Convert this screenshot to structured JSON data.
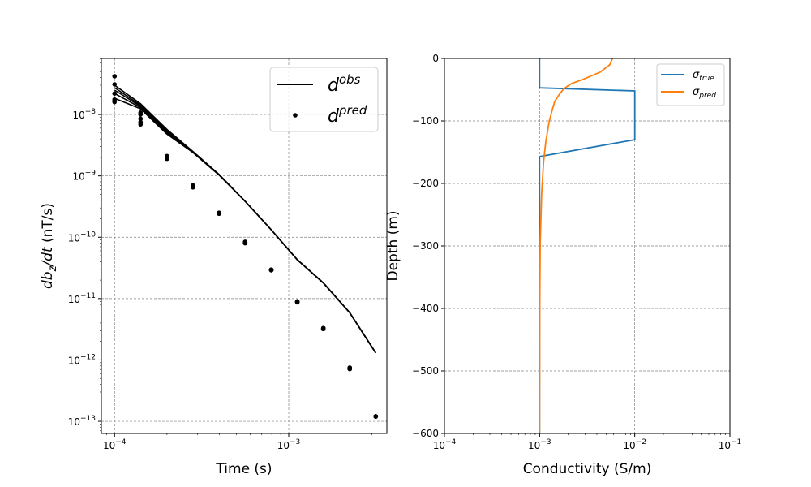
{
  "chart_data": [
    {
      "type": "line+scatter",
      "xlabel": "Time (s)",
      "ylabel": {
        "base": "db",
        "sub": "z",
        "rest": "/dt",
        "unit": " (nT/s)"
      },
      "xscale": "log",
      "yscale": "log",
      "xlim": [
        8.4e-05,
        0.00366
      ],
      "ylim": [
        6.34e-14,
        8.2e-08
      ],
      "grid": true,
      "xticks": [
        {
          "value": 0.0001,
          "base": "10",
          "exp": "−4"
        },
        {
          "value": 0.001,
          "base": "10",
          "exp": "−3"
        }
      ],
      "yticks": [
        {
          "value": 1e-08,
          "base": "10",
          "exp": "−8"
        },
        {
          "value": 1e-09,
          "base": "10",
          "exp": "−9"
        },
        {
          "value": 1e-10,
          "base": "10",
          "exp": "−10"
        },
        {
          "value": 1e-11,
          "base": "10",
          "exp": "−11"
        },
        {
          "value": 1e-12,
          "base": "10",
          "exp": "−12"
        },
        {
          "value": 1e-13,
          "base": "10",
          "exp": "−13"
        }
      ],
      "legend": {
        "position": "top-right",
        "entries": [
          {
            "base": "d",
            "sup": "obs",
            "style": "line"
          },
          {
            "base": "d",
            "sup": "pred",
            "style": "dot"
          }
        ]
      },
      "times": [
        0.0001,
        0.000141,
        0.0002,
        0.000282,
        0.000398,
        0.000562,
        0.000794,
        0.00112,
        0.00158,
        0.00224,
        0.00316
      ],
      "obs_series": [
        [
          3e-08,
          1.5e-08,
          5.7e-09,
          2.5e-09,
          1.06e-09,
          3.85e-10,
          1.32e-10,
          4.3e-11,
          1.8e-11,
          5.9e-12,
          1.3e-12
        ],
        [
          2.74e-08,
          1.42e-08,
          5.4e-09,
          2.47e-09,
          1.05e-09,
          3.85e-10,
          1.32e-10,
          4.3e-11,
          1.8e-11,
          5.9e-12,
          1.3e-12
        ],
        [
          2.5e-08,
          1.36e-08,
          5.2e-09,
          2.45e-09,
          1.05e-09,
          3.85e-10,
          1.32e-10,
          4.3e-11,
          1.8e-11,
          5.9e-12,
          1.3e-12
        ],
        [
          2.2e-08,
          1.3e-08,
          5e-09,
          2.42e-09,
          1.04e-09,
          3.85e-10,
          1.32e-10,
          4.3e-11,
          1.8e-11,
          5.9e-12,
          1.3e-12
        ],
        [
          1.84e-08,
          1.24e-08,
          4.8e-09,
          2.4e-09,
          1.03e-09,
          3.85e-10,
          1.32e-10,
          4.3e-11,
          1.8e-11,
          5.9e-12,
          1.3e-12
        ]
      ],
      "pred_series": [
        [
          4.2e-08,
          1.07e-08,
          2.1e-09,
          7e-10,
          2.5e-10,
          8.4e-11,
          2.97e-11,
          9e-12,
          3.3e-12,
          7.5e-13,
          1.2e-13
        ],
        [
          3.1e-08,
          1e-08,
          2.05e-09,
          6.8e-10,
          2.48e-10,
          8.3e-11,
          2.95e-11,
          8.9e-12,
          3.3e-12,
          7.4e-13,
          1.2e-13
        ],
        [
          2.2e-08,
          8.5e-09,
          2e-09,
          6.7e-10,
          2.46e-10,
          8.2e-11,
          2.93e-11,
          8.8e-12,
          3.2e-12,
          7.3e-13,
          1.2e-13
        ],
        [
          1.75e-08,
          7.5e-09,
          1.95e-09,
          6.6e-10,
          2.44e-10,
          8.1e-11,
          2.91e-11,
          8.8e-12,
          3.2e-12,
          7.2e-13,
          1.2e-13
        ],
        [
          1.6e-08,
          6.9e-09,
          1.9e-09,
          6.5e-10,
          2.42e-10,
          8e-11,
          2.9e-11,
          8.7e-12,
          3.2e-12,
          7.1e-13,
          1.2e-13
        ]
      ],
      "obs_color": "#000000",
      "pred_color": "#000000"
    },
    {
      "type": "line",
      "xlabel": "Conductivity (S/m)",
      "ylabel": "Depth (m)",
      "xscale": "log",
      "xlim": [
        0.0001,
        0.1
      ],
      "ylim": [
        -600,
        0
      ],
      "grid": true,
      "xticks": [
        {
          "value": 0.0001,
          "base": "10",
          "exp": "−4"
        },
        {
          "value": 0.001,
          "base": "10",
          "exp": "−3"
        },
        {
          "value": 0.01,
          "base": "10",
          "exp": "−2"
        },
        {
          "value": 0.1,
          "base": "10",
          "exp": "−1"
        }
      ],
      "yticks": [
        {
          "value": 0,
          "label": "0"
        },
        {
          "value": -100,
          "label": "−100"
        },
        {
          "value": -200,
          "label": "−200"
        },
        {
          "value": -300,
          "label": "−300"
        },
        {
          "value": -400,
          "label": "−400"
        },
        {
          "value": -500,
          "label": "−500"
        },
        {
          "value": -600,
          "label": "−600"
        }
      ],
      "legend": {
        "position": "top-right",
        "entries": [
          {
            "base": "σ",
            "sub": "true",
            "color": "#1f77b4"
          },
          {
            "base": "σ",
            "sub": "pred",
            "color": "#ff7f0e"
          }
        ]
      },
      "series": [
        {
          "name": "σ_true",
          "color": "#1f77b4",
          "points": [
            [
              0.001,
              0
            ],
            [
              0.001,
              -47
            ],
            [
              0.01,
              -52
            ],
            [
              0.01,
              -130
            ],
            [
              0.001,
              -157
            ],
            [
              0.001,
              -600
            ]
          ]
        },
        {
          "name": "σ_pred",
          "color": "#ff7f0e",
          "points": [
            [
              0.00582,
              0
            ],
            [
              0.00548,
              -10
            ],
            [
              0.00433,
              -22
            ],
            [
              0.00281,
              -34
            ],
            [
              0.00218,
              -40
            ],
            [
              0.00198,
              -44
            ],
            [
              0.00179,
              -49
            ],
            [
              0.00162,
              -57
            ],
            [
              0.00144,
              -69
            ],
            [
              0.00136,
              -82
            ],
            [
              0.00126,
              -101
            ],
            [
              0.00116,
              -134
            ],
            [
              0.0011,
              -166
            ],
            [
              0.00105,
              -218
            ],
            [
              0.001015,
              -296
            ],
            [
              0.001003,
              -400
            ],
            [
              0.001,
              -600
            ]
          ]
        }
      ]
    }
  ]
}
